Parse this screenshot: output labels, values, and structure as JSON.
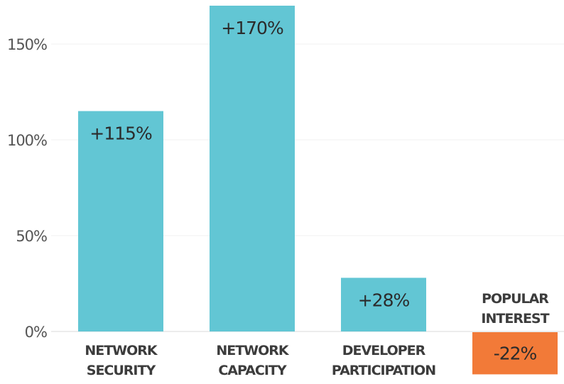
{
  "chart_data": {
    "type": "bar",
    "title": "",
    "xlabel": "",
    "ylabel": "",
    "ylim": [
      0,
      170
    ],
    "yticks": [
      0,
      50,
      100,
      150
    ],
    "ytick_labels": [
      "0%",
      "50%",
      "100%",
      "150%"
    ],
    "grid": true,
    "categories": [
      [
        "NETWORK",
        "SECURITY"
      ],
      [
        "NETWORK",
        "CAPACITY"
      ],
      [
        "DEVELOPER",
        "PARTICIPATION"
      ],
      [
        "POPULAR",
        "INTEREST"
      ]
    ],
    "values": [
      115,
      170,
      28,
      -22
    ],
    "data_labels": [
      "+115%",
      "+170%",
      "+28%",
      "-22%"
    ],
    "colors": [
      "#62c6d4",
      "#62c6d4",
      "#62c6d4",
      "#f27a38"
    ]
  }
}
